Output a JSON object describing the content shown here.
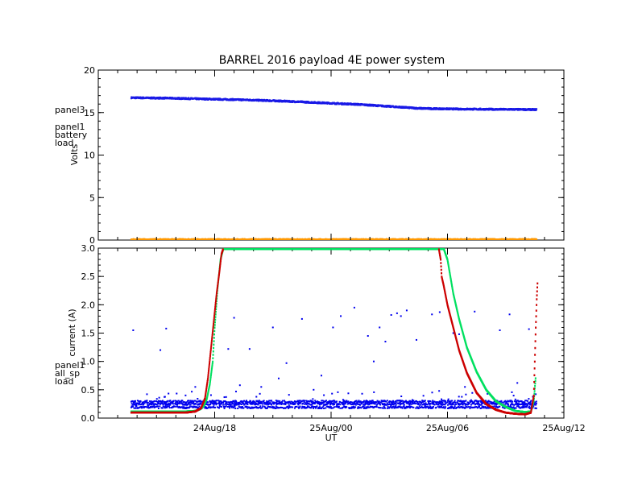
{
  "chart_data": [
    {
      "type": "scatter",
      "title": "BARREL 2016 payload 4E power system",
      "ylabel": "Volts",
      "ylim": [
        0,
        20
      ],
      "yticks": [
        0,
        5,
        10,
        15,
        20
      ],
      "xlim_hours": [
        12,
        36
      ],
      "legend_placement": "left",
      "legend": [
        {
          "name": "panel3",
          "color": "#ff9900"
        },
        {
          "name": "panel1",
          "color": "#00e060"
        },
        {
          "name": "battery",
          "color": "#00c8d8"
        },
        {
          "name": "load",
          "color": "#0000ff"
        }
      ],
      "series": [
        {
          "name": "load",
          "color": "#1a1ae6",
          "x": [
            13.7,
            14.5,
            15.5,
            16.5,
            17.5,
            18.5,
            19.5,
            20.5,
            21.5,
            22.5,
            23.5,
            24.5,
            25.5,
            26.5,
            27.5,
            28.5,
            29.5,
            30.5,
            31.5,
            32.5,
            33.5,
            34.6
          ],
          "y": [
            16.75,
            16.72,
            16.7,
            16.65,
            16.6,
            16.55,
            16.5,
            16.43,
            16.35,
            16.25,
            16.15,
            16.05,
            15.95,
            15.8,
            15.65,
            15.5,
            15.45,
            15.42,
            15.4,
            15.38,
            15.37,
            15.35
          ]
        },
        {
          "name": "panel3",
          "color": "#ff9900",
          "x": [
            13.7,
            16,
            18,
            20,
            22,
            24,
            26,
            28,
            30,
            32,
            34.6
          ],
          "y": [
            0.05,
            0.05,
            0.05,
            0.05,
            0.05,
            0.05,
            0.05,
            0.05,
            0.05,
            0.05,
            0.05
          ]
        }
      ]
    },
    {
      "type": "scatter",
      "ylabel": "current (A)",
      "xlabel": "UT",
      "ylim": [
        0,
        3
      ],
      "yticks": [
        0.0,
        0.5,
        1.0,
        1.5,
        2.0,
        2.5,
        3.0
      ],
      "xlim_hours": [
        12,
        36
      ],
      "xticks": [
        {
          "value": 18,
          "label": "24Aug/18"
        },
        {
          "value": 24,
          "label": "25Aug/00"
        },
        {
          "value": 30,
          "label": "25Aug/06"
        },
        {
          "value": 36,
          "label": "25Aug/12"
        }
      ],
      "legend_placement": "left",
      "legend": [
        {
          "name": "panel1",
          "color": "#ff0000"
        },
        {
          "name": "all_sp",
          "color": "#00e060"
        },
        {
          "name": "load",
          "color": "#0000ff"
        }
      ],
      "series": [
        {
          "name": "all_sp",
          "color": "#00e060",
          "x": [
            13.7,
            16.5,
            17.0,
            17.25,
            17.45,
            17.6,
            17.75,
            17.9,
            18.0,
            18.15,
            18.3,
            18.45,
            24,
            29.8,
            30.0,
            30.1,
            30.3,
            30.6,
            31.0,
            31.5,
            32.0,
            32.5,
            33.0,
            33.5,
            34.0,
            34.3,
            34.45,
            34.55
          ],
          "y": [
            0.12,
            0.12,
            0.13,
            0.16,
            0.22,
            0.35,
            0.6,
            1.0,
            1.6,
            2.3,
            2.8,
            3.0,
            3.0,
            3.0,
            2.8,
            2.6,
            2.2,
            1.75,
            1.25,
            0.82,
            0.5,
            0.3,
            0.2,
            0.13,
            0.11,
            0.12,
            0.3,
            0.75
          ]
        },
        {
          "name": "panel1",
          "color": "#cc0000",
          "x": [
            13.7,
            16.5,
            17.0,
            17.3,
            17.5,
            17.65,
            17.8,
            17.95,
            18.1,
            18.25,
            18.35,
            18.45,
            29.55,
            29.65,
            29.7,
            29.8,
            30.0,
            30.3,
            30.6,
            31.0,
            31.5,
            32.0,
            32.5,
            33.0,
            33.5,
            34.0,
            34.3,
            34.45,
            34.5,
            34.55,
            34.6,
            34.65
          ],
          "y": [
            0.1,
            0.1,
            0.12,
            0.18,
            0.35,
            0.7,
            1.2,
            1.7,
            2.2,
            2.6,
            2.9,
            3.0,
            3.0,
            2.8,
            2.5,
            2.35,
            2.0,
            1.6,
            1.2,
            0.8,
            0.45,
            0.25,
            0.15,
            0.1,
            0.08,
            0.07,
            0.1,
            0.4,
            1.0,
            1.6,
            2.1,
            2.45
          ]
        },
        {
          "name": "load",
          "color": "#0000ee",
          "baseline": 0.25,
          "outliers_x": [
            13.8,
            15.2,
            15.5,
            16.5,
            17.0,
            18.7,
            19.0,
            19.3,
            19.8,
            20.4,
            21.0,
            21.3,
            21.7,
            22.5,
            23.1,
            23.5,
            24.1,
            24.5,
            25.2,
            25.6,
            25.9,
            26.2,
            26.5,
            26.8,
            27.1,
            27.4,
            27.6,
            27.9,
            28.4,
            29.2,
            29.6,
            30.3,
            30.6,
            30.9,
            31.4,
            32.0,
            32.7,
            33.2,
            33.6,
            34.2
          ],
          "outliers_y": [
            1.55,
            1.2,
            1.58,
            0.4,
            0.55,
            1.22,
            1.77,
            0.58,
            1.22,
            0.55,
            1.6,
            0.7,
            0.97,
            1.75,
            0.5,
            0.75,
            1.6,
            1.8,
            1.95,
            0.43,
            1.45,
            1.0,
            1.6,
            1.35,
            1.82,
            1.85,
            1.8,
            1.9,
            1.38,
            1.83,
            1.87,
            1.5,
            1.48,
            0.55,
            1.88,
            0.5,
            1.55,
            1.83,
            0.62,
            1.57
          ]
        }
      ]
    }
  ]
}
